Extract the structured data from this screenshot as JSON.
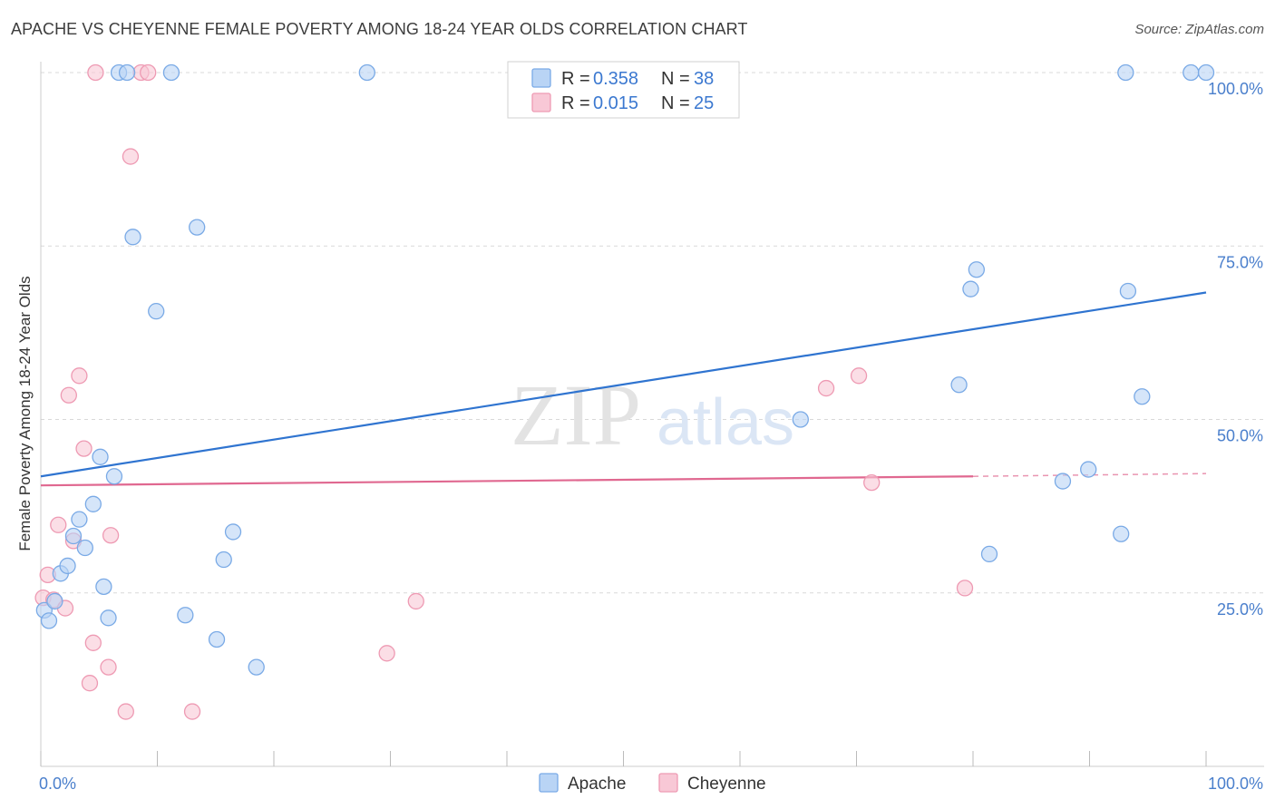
{
  "title": "APACHE VS CHEYENNE FEMALE POVERTY AMONG 18-24 YEAR OLDS CORRELATION CHART",
  "source": "Source: ZipAtlas.com",
  "colors": {
    "apache_fill": "#b9d4f5",
    "apache_stroke": "#7aaae6",
    "apache_line": "#2f74d0",
    "cheyenne_fill": "#f8c8d6",
    "cheyenne_stroke": "#ee9ab3",
    "cheyenne_line": "#e06890",
    "grid": "#d9d9d9",
    "tick_label": "#4a7fcc"
  },
  "legend": {
    "r_label": "R =",
    "n_label": "N =",
    "rows": [
      {
        "series": "Apache",
        "r": "0.358",
        "n": "38"
      },
      {
        "series": "Cheyenne",
        "r": "0.015",
        "n": "25"
      }
    ]
  },
  "chart_data": {
    "type": "scatter",
    "title": "APACHE VS CHEYENNE FEMALE POVERTY AMONG 18-24 YEAR OLDS CORRELATION CHART",
    "xlabel": "",
    "ylabel": "Female Poverty Among 18-24 Year Olds",
    "xlim": [
      0,
      100
    ],
    "ylim": [
      0,
      100
    ],
    "x_tick_labels": [
      "0.0%",
      "100.0%"
    ],
    "y_tick_labels": [
      {
        "value": 25,
        "label": "25.0%"
      },
      {
        "value": 50,
        "label": "50.0%"
      },
      {
        "value": 75,
        "label": "75.0%"
      },
      {
        "value": 100,
        "label": "100.0%"
      }
    ],
    "grid": true,
    "legend_placement": "top-center",
    "watermark": "ZIPatlas",
    "series": [
      {
        "name": "Apache",
        "points": [
          [
            0.3,
            22.5
          ],
          [
            0.7,
            21.0
          ],
          [
            1.2,
            23.8
          ],
          [
            1.7,
            27.8
          ],
          [
            2.3,
            28.9
          ],
          [
            2.8,
            33.2
          ],
          [
            3.3,
            35.6
          ],
          [
            3.8,
            31.5
          ],
          [
            4.5,
            37.8
          ],
          [
            5.1,
            44.6
          ],
          [
            5.4,
            25.9
          ],
          [
            5.8,
            21.4
          ],
          [
            6.3,
            41.8
          ],
          [
            6.7,
            100.0
          ],
          [
            7.4,
            100.0
          ],
          [
            7.9,
            76.3
          ],
          [
            9.9,
            65.6
          ],
          [
            11.2,
            100.0
          ],
          [
            12.4,
            21.8
          ],
          [
            13.4,
            77.7
          ],
          [
            15.1,
            18.3
          ],
          [
            15.7,
            29.8
          ],
          [
            16.5,
            33.8
          ],
          [
            18.5,
            14.3
          ],
          [
            28.0,
            100.0
          ],
          [
            65.2,
            50.0
          ],
          [
            78.8,
            55.0
          ],
          [
            79.8,
            68.8
          ],
          [
            80.3,
            71.6
          ],
          [
            81.4,
            30.6
          ],
          [
            87.7,
            41.1
          ],
          [
            89.9,
            42.8
          ],
          [
            92.7,
            33.5
          ],
          [
            93.1,
            100.0
          ],
          [
            93.3,
            68.5
          ],
          [
            94.5,
            53.3
          ],
          [
            98.7,
            100.0
          ],
          [
            100.0,
            100.0
          ]
        ],
        "trend": {
          "x": [
            0,
            100
          ],
          "y": [
            41.8,
            68.3
          ]
        }
      },
      {
        "name": "Cheyenne",
        "points": [
          [
            0.2,
            24.3
          ],
          [
            0.6,
            27.6
          ],
          [
            1.1,
            24.0
          ],
          [
            1.5,
            34.8
          ],
          [
            2.1,
            22.8
          ],
          [
            2.4,
            53.5
          ],
          [
            2.8,
            32.5
          ],
          [
            3.3,
            56.3
          ],
          [
            3.7,
            45.8
          ],
          [
            4.5,
            17.8
          ],
          [
            4.2,
            12.0
          ],
          [
            4.7,
            100.0
          ],
          [
            5.8,
            14.3
          ],
          [
            6.0,
            33.3
          ],
          [
            7.3,
            7.9
          ],
          [
            7.7,
            87.9
          ],
          [
            8.6,
            100.0
          ],
          [
            9.2,
            100.0
          ],
          [
            13.0,
            7.9
          ],
          [
            29.7,
            16.3
          ],
          [
            32.2,
            23.8
          ],
          [
            67.4,
            54.5
          ],
          [
            70.2,
            56.3
          ],
          [
            71.3,
            40.9
          ],
          [
            79.3,
            25.7
          ]
        ],
        "trend": {
          "x": [
            0,
            80
          ],
          "y": [
            40.5,
            41.8
          ]
        },
        "trend_dashed": {
          "x": [
            80,
            100
          ],
          "y": [
            41.8,
            42.2
          ]
        }
      }
    ]
  },
  "bottom_legend": [
    "Apache",
    "Cheyenne"
  ]
}
